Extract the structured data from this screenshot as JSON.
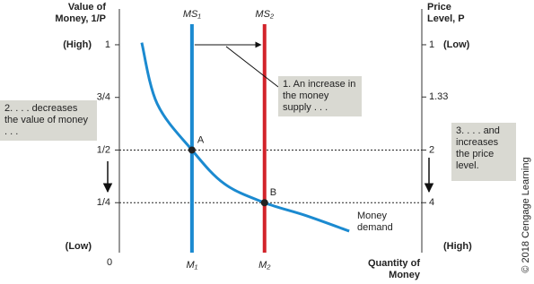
{
  "chart_data": {
    "type": "money-market",
    "ylabel": "Value of Money, 1/P",
    "y2label": "Price Level, P",
    "xlabel": "Quantity of Money",
    "origin_label": "0",
    "y_high_label": "(High)",
    "y_low_label": "(Low)",
    "y2_low_label": "(Low)",
    "y2_high_label": "(High)",
    "xlim": [
      0,
      100
    ],
    "ylim": [
      0,
      1.17
    ],
    "yticks": [
      1,
      {
        "value": 0.75,
        "label": "3/4"
      },
      {
        "value": 0.5,
        "label": "1/2"
      },
      {
        "value": 0.25,
        "label": "1/4"
      }
    ],
    "y2scale": "reciprocal",
    "y2ticks": [
      1,
      1.33,
      2,
      4
    ],
    "supply": [
      {
        "name": "MS₁",
        "x_label": "M₁",
        "x": 24,
        "color": "#1b8ad0"
      },
      {
        "name": "MS₂",
        "x_label": "M₂",
        "x": 48,
        "color": "#d2232a"
      }
    ],
    "demand": {
      "name": "Money demand",
      "color": "#1b8ad0",
      "x": [
        7.4,
        12.5,
        24,
        34.7,
        48,
        61.4,
        76
      ],
      "values": [
        1.01,
        0.72,
        0.5,
        0.34,
        0.25,
        0.19,
        0.115
      ]
    },
    "points": [
      {
        "label": "A",
        "x": 24,
        "y": 0.5
      },
      {
        "label": "B",
        "x": 48,
        "y": 0.25
      }
    ],
    "annotations": [
      "1. An increase in the money supply . . .",
      "2. . . . decreases the value of money . . .",
      "3. . . . and increases the price level."
    ],
    "credit": "© 2018 Cengage Learning"
  }
}
